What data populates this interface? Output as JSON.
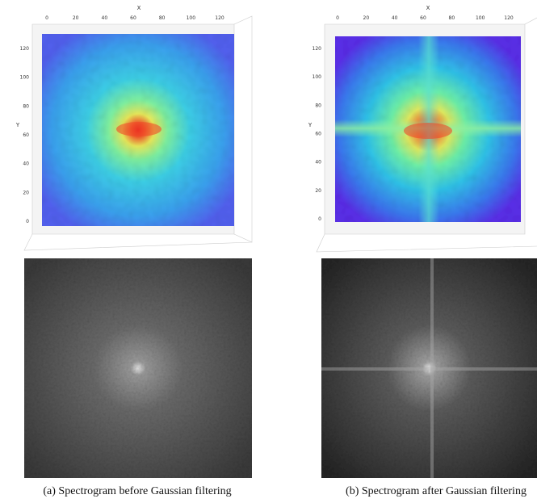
{
  "panels": [
    {
      "x_label": "X",
      "y_label": "Y",
      "x_ticks": [
        0,
        20,
        40,
        60,
        80,
        100,
        120
      ],
      "y_ticks": [
        0,
        20,
        40,
        60,
        80,
        100,
        120
      ],
      "caption": "(a) Spectrogram before Gaussian filtering"
    },
    {
      "x_label": "X",
      "y_label": "Y",
      "x_ticks": [
        0,
        20,
        40,
        60,
        80,
        100,
        120
      ],
      "y_ticks": [
        0,
        20,
        40,
        60,
        80,
        100,
        120
      ],
      "caption": "(b) Spectrogram after Gaussian filtering"
    }
  ]
}
